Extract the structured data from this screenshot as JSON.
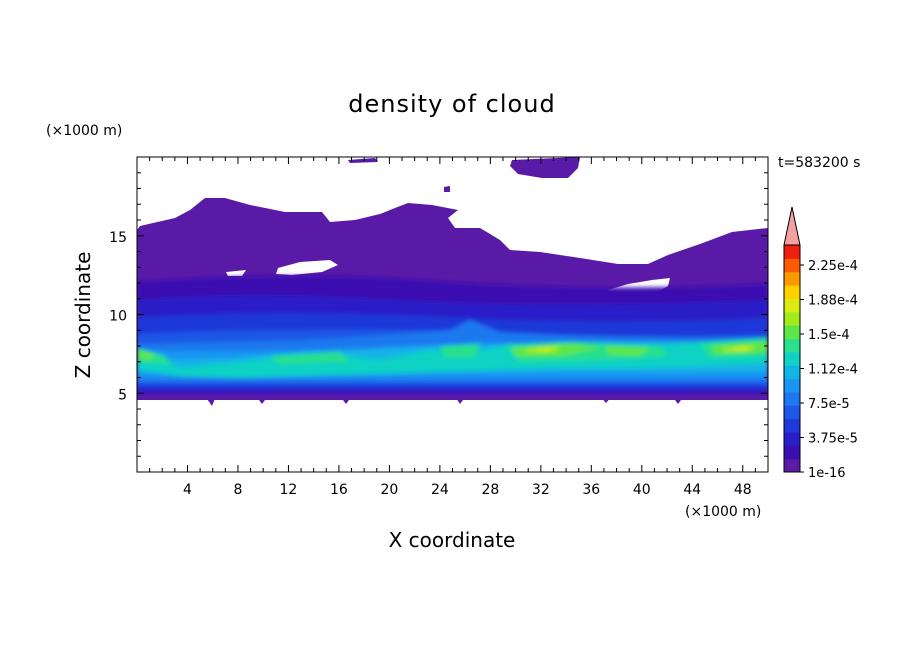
{
  "chart_data": {
    "type": "heatmap",
    "title": "density of cloud",
    "xlabel": "X coordinate",
    "ylabel": "Z coordinate",
    "x_unit": "(×1000 m)",
    "y_unit": "(×1000 m)",
    "time_label": "t=583200 s",
    "xlim": [
      0,
      50
    ],
    "ylim": [
      0,
      20
    ],
    "x_ticks": [
      "4",
      "8",
      "12",
      "16",
      "20",
      "24",
      "28",
      "32",
      "36",
      "40",
      "44",
      "48"
    ],
    "y_ticks": [
      "5",
      "10",
      "15"
    ],
    "colorbar": {
      "labels": [
        "1e-16",
        "3.75e-5",
        "7.5e-5",
        "1.12e-4",
        "1.5e-4",
        "1.88e-4",
        "2.25e-4"
      ],
      "levels": 16,
      "overflow_arrow": true,
      "colors": [
        "#5a1aa8",
        "#3a0fb0",
        "#2a1ec8",
        "#1f38d8",
        "#1e56e6",
        "#1f78ef",
        "#1896f2",
        "#12b4e6",
        "#10d2c4",
        "#28e08e",
        "#5ee646",
        "#a0ea1e",
        "#dcec12",
        "#ffd000",
        "#ff9a00",
        "#ff5a00",
        "#f02010"
      ],
      "arrow_color": "#f4a0a0"
    }
  }
}
